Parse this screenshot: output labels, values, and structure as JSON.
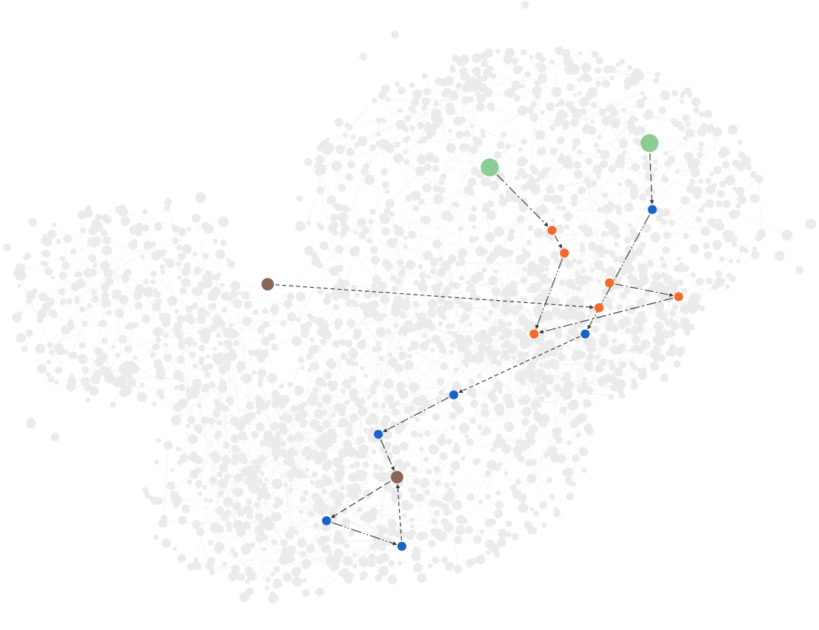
{
  "colors": {
    "background": "#ffffff",
    "background_node": "#ebebeb",
    "background_edge": "#f0f0f0",
    "path_edge": "#333333",
    "green": "#8dcc93",
    "brown": "#8b6656",
    "orange": "#f26b2a",
    "blue": "#1565c9"
  },
  "highlight": {
    "nodes": [
      {
        "id": "g1",
        "color": "green",
        "size": "large"
      },
      {
        "id": "g2",
        "color": "green",
        "size": "large"
      },
      {
        "id": "b1",
        "color": "brown",
        "size": "medium"
      },
      {
        "id": "b2",
        "color": "brown",
        "size": "medium"
      },
      {
        "id": "o1",
        "color": "orange",
        "size": "small"
      },
      {
        "id": "o2",
        "color": "orange",
        "size": "small"
      },
      {
        "id": "o3",
        "color": "orange",
        "size": "small"
      },
      {
        "id": "o4",
        "color": "orange",
        "size": "small"
      },
      {
        "id": "o5",
        "color": "orange",
        "size": "small"
      },
      {
        "id": "o6",
        "color": "orange",
        "size": "small"
      },
      {
        "id": "u1",
        "color": "blue",
        "size": "small"
      },
      {
        "id": "u2",
        "color": "blue",
        "size": "small"
      },
      {
        "id": "u3",
        "color": "blue",
        "size": "small"
      },
      {
        "id": "u4",
        "color": "blue",
        "size": "small"
      },
      {
        "id": "u5",
        "color": "blue",
        "size": "small"
      },
      {
        "id": "u6",
        "color": "blue",
        "size": "small"
      },
      {
        "id": "u7",
        "color": "blue",
        "size": "small"
      }
    ],
    "edges": [
      {
        "from": "g1",
        "to": "o1"
      },
      {
        "from": "o1",
        "to": "o2"
      },
      {
        "from": "o2",
        "to": "o5"
      },
      {
        "from": "b1",
        "to": "o4"
      },
      {
        "from": "o3",
        "to": "o6"
      },
      {
        "from": "o6",
        "to": "o5"
      },
      {
        "from": "g2",
        "to": "u1"
      },
      {
        "from": "u1",
        "to": "u2"
      },
      {
        "from": "u2",
        "to": "u3"
      },
      {
        "from": "u3",
        "to": "u4"
      },
      {
        "from": "u4",
        "to": "b2"
      },
      {
        "from": "b2",
        "to": "u5"
      },
      {
        "from": "u5",
        "to": "u6"
      },
      {
        "from": "u6",
        "to": "b2"
      }
    ]
  }
}
